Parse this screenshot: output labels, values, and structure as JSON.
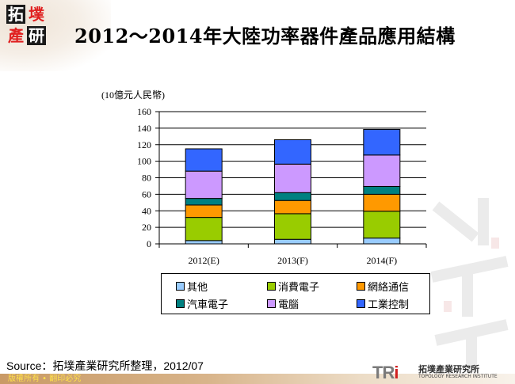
{
  "header": {
    "logo_chars": [
      "拓",
      "墣",
      "產",
      "研"
    ],
    "title": "2012～2014年大陸功率器件產品應用結構"
  },
  "chart_data": {
    "type": "bar",
    "stacked": true,
    "title": "2012～2014年大陸功率器件產品應用結構",
    "ylabel": "(10億元人民幣)",
    "xlabel": "",
    "ylim": [
      0,
      160
    ],
    "yticks": [
      0,
      20,
      40,
      60,
      80,
      100,
      120,
      140,
      160
    ],
    "grid": true,
    "legend_position": "bottom",
    "categories": [
      "2012(E)",
      "2013(F)",
      "2014(F)"
    ],
    "series": [
      {
        "name": "其他",
        "color": "#99ccff",
        "values": [
          4,
          5.5,
          7
        ]
      },
      {
        "name": "消費電子",
        "color": "#99cc00",
        "values": [
          28,
          31,
          32.5
        ]
      },
      {
        "name": "網絡通信",
        "color": "#ff9900",
        "values": [
          15,
          16,
          20.5
        ]
      },
      {
        "name": "汽車電子",
        "color": "#008080",
        "values": [
          8,
          9.5,
          9.5
        ]
      },
      {
        "name": "電腦",
        "color": "#cc99ff",
        "values": [
          33,
          34.5,
          38
        ]
      },
      {
        "name": "工業控制",
        "color": "#3366ff",
        "values": [
          27,
          29.5,
          31
        ]
      }
    ],
    "totals": [
      115,
      126,
      138.5
    ]
  },
  "source": {
    "text": "Source：拓墣產業研究所整理，2012/07"
  },
  "footer": {
    "copyright": "版權所有 • 翻印必究",
    "org_mark": "TRi",
    "org_name_zh": "拓墣產業研究所",
    "org_name_en": "TOPOLOGY RESEARCH INSTITUTE"
  }
}
